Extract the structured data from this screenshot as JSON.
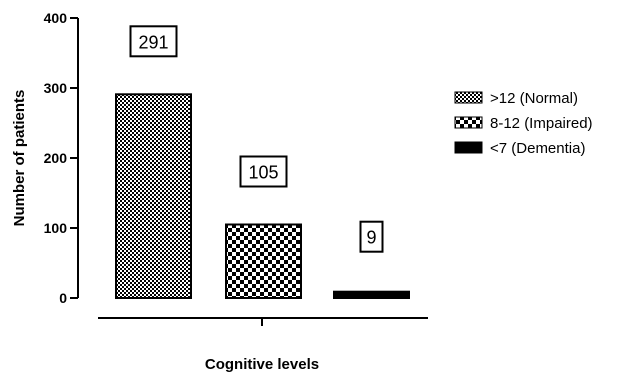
{
  "chart_data": {
    "type": "bar",
    "categories": [
      ">12 (Normal)",
      "8-12 (Impaired)",
      "<7 (Dementia)"
    ],
    "values": [
      291,
      105,
      9
    ],
    "data_labels": [
      "291",
      "105",
      "9"
    ],
    "xlabel": "Cognitive levels",
    "ylabel": "Number of patients",
    "ylim": [
      0,
      400
    ],
    "yticks": [
      0,
      100,
      200,
      300,
      400
    ],
    "grid": false,
    "legend_position": "right",
    "fill_patterns": [
      "fine-checker",
      "coarse-checker",
      "solid"
    ],
    "colors": {
      "bar_fill_dark": "#000000",
      "bar_fill_light": "#ffffff",
      "axis": "#000000"
    }
  }
}
